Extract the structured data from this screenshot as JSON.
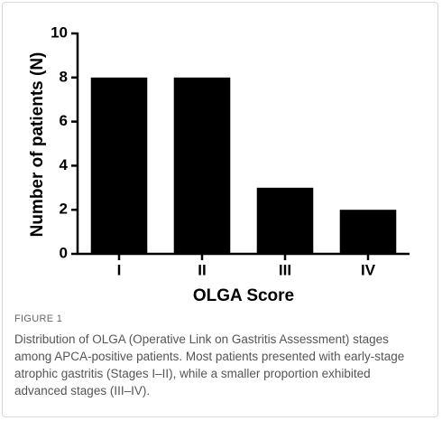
{
  "chart_data": {
    "type": "bar",
    "x_label": "OLGA Score",
    "y_label": "Number of patients (N)",
    "categories": [
      "I",
      "II",
      "III",
      "IV"
    ],
    "values": [
      8,
      8,
      3,
      2
    ],
    "color": "#000000",
    "ylim": [
      0,
      10
    ],
    "yticks": [
      0,
      2,
      4,
      6,
      8,
      10
    ],
    "grid": false
  },
  "figure": {
    "label": "FIGURE 1",
    "caption": "Distribution of OLGA (Operative Link on Gastritis Assessment) stages among APCA-positive patients. Most patients presented with early-stage atrophic gastritis (Stages I–II), while a smaller proportion exhibited advanced stages (III–IV)."
  }
}
